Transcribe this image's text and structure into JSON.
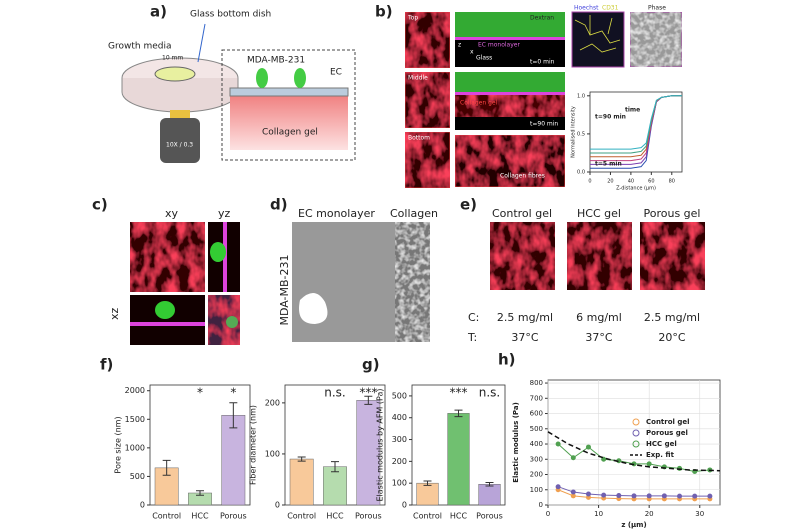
{
  "panels": {
    "a": {
      "label": "a)",
      "glass": "Glass bottom dish",
      "media": "Growth media",
      "scale": "10 mm",
      "cell": "MDA-MB-231",
      "ec": "EC",
      "gel": "Collagen gel",
      "objective": "10X / 0.3"
    },
    "b": {
      "label": "b)",
      "top": "Top",
      "middle": "Middle",
      "bottom": "Bottom",
      "dextran": "Dextran",
      "monolayer": "EC monolayer",
      "glass": "Glass",
      "t0": "t=0 min",
      "gel": "Collagen gel",
      "t90": "t=90 min",
      "fibres": "Collagen fibres",
      "hoechst": "Hoechst",
      "cd31": "CD31",
      "phase": "Phase",
      "z": "z",
      "x": "x"
    },
    "c": {
      "label": "c)",
      "xy": "xy",
      "yz": "yz",
      "xz": "xz"
    },
    "d": {
      "label": "d)",
      "monolayer": "EC monolayer",
      "collagen": "Collagen",
      "cell": "MDA-MB-231"
    },
    "e": {
      "label": "e)",
      "gels": [
        "Control gel",
        "HCC gel",
        "Porous gel"
      ],
      "c": "C:",
      "t": "T:",
      "conc": [
        "2.5 mg/ml",
        "6 mg/ml",
        "2.5 mg/ml"
      ],
      "temp": [
        "37°C",
        "37°C",
        "20°C"
      ]
    }
  },
  "chart_data": [
    {
      "type": "line",
      "ylabel": "Normalised Intensity",
      "xlabel": "Z-distance (µm)",
      "notes": [
        "t=90 min",
        "time",
        "t=5 min"
      ],
      "x": [
        0,
        20,
        40,
        50,
        55,
        60,
        65,
        70,
        80,
        90
      ],
      "xlim": [
        0,
        90
      ],
      "xticks": [
        0,
        20,
        40,
        60,
        80
      ],
      "ylim": [
        0,
        1.05
      ],
      "yticks": [
        {
          "value": 0,
          "label": "0.0"
        },
        {
          "value": 0.5,
          "label": "0.5"
        },
        {
          "value": 1,
          "label": "1.0"
        }
      ],
      "series": [
        {
          "color": "#2a4fb0",
          "values": [
            0.05,
            0.05,
            0.05,
            0.07,
            0.15,
            0.6,
            0.92,
            0.98,
            1,
            1
          ]
        },
        {
          "color": "#7a3fb0",
          "values": [
            0.1,
            0.1,
            0.1,
            0.12,
            0.2,
            0.62,
            0.92,
            0.98,
            1,
            1
          ]
        },
        {
          "color": "#c04080",
          "values": [
            0.15,
            0.15,
            0.15,
            0.17,
            0.25,
            0.64,
            0.93,
            0.98,
            1,
            1
          ]
        },
        {
          "color": "#c06030",
          "values": [
            0.2,
            0.2,
            0.2,
            0.22,
            0.3,
            0.66,
            0.93,
            0.98,
            1,
            1
          ]
        },
        {
          "color": "#40a080",
          "values": [
            0.25,
            0.25,
            0.25,
            0.27,
            0.34,
            0.68,
            0.94,
            0.98,
            1,
            1
          ]
        },
        {
          "color": "#30b0c0",
          "values": [
            0.3,
            0.3,
            0.3,
            0.32,
            0.38,
            0.7,
            0.94,
            0.98,
            1,
            1
          ]
        }
      ]
    },
    {
      "type": "bar",
      "label": "f)",
      "ylabel": "Pore size (nm)",
      "categories": [
        "Control",
        "HCC",
        "Porous"
      ],
      "values": [
        650,
        210,
        1570
      ],
      "errors": [
        130,
        40,
        220
      ],
      "colors": [
        "#f8c99a",
        "#b5dcae",
        "#c8b4df"
      ],
      "annotations": [
        null,
        "*",
        "*"
      ],
      "ylim": [
        0,
        2100
      ],
      "yticks": [
        0,
        500,
        1000,
        1500,
        2000
      ]
    },
    {
      "type": "bar",
      "ylabel": "Fiber diameter (nm)",
      "categories": [
        "Control",
        "HCC",
        "Porous"
      ],
      "values": [
        90,
        75,
        205
      ],
      "errors": [
        4,
        10,
        8
      ],
      "colors": [
        "#f8c99a",
        "#b5dcae",
        "#c8b4df"
      ],
      "annotations": [
        null,
        "n.s.",
        "***"
      ],
      "ylim": [
        0,
        235
      ],
      "yticks": [
        0,
        100,
        200
      ]
    },
    {
      "type": "bar",
      "label": "g)",
      "ylabel": "Elastic modulus by AFM (Pa)",
      "categories": [
        "Control",
        "HCC",
        "Porous"
      ],
      "values": [
        100,
        420,
        95
      ],
      "errors": [
        10,
        15,
        8
      ],
      "colors": [
        "#f8c99a",
        "#70c070",
        "#b8a4d8"
      ],
      "annotations": [
        null,
        "***",
        "n.s."
      ],
      "ylim": [
        0,
        550
      ],
      "yticks": [
        0,
        100,
        200,
        300,
        400,
        500
      ]
    },
    {
      "type": "scatter",
      "label": "h)",
      "ylabel": "Elastic modulus (Pa)",
      "xlabel": "z (µm)",
      "xlim": [
        0,
        34
      ],
      "xticks": [
        0,
        10,
        20,
        30
      ],
      "ylim": [
        0,
        820
      ],
      "yticks": [
        0,
        100,
        200,
        300,
        400,
        500,
        600,
        700,
        800
      ],
      "grid": true,
      "series": [
        {
          "name": "Control gel",
          "color": "#f0a050",
          "x": [
            2,
            5,
            8,
            11,
            14,
            17,
            20,
            23,
            26,
            29,
            32
          ],
          "values": [
            100,
            60,
            50,
            45,
            42,
            40,
            40,
            40,
            40,
            40,
            40
          ]
        },
        {
          "name": "Porous gel",
          "color": "#7060b0",
          "x": [
            2,
            5,
            8,
            11,
            14,
            17,
            20,
            23,
            26,
            29,
            32
          ],
          "values": [
            120,
            85,
            72,
            65,
            62,
            60,
            60,
            60,
            58,
            58,
            58
          ]
        },
        {
          "name": "HCC gel",
          "color": "#50a050",
          "x": [
            2,
            5,
            8,
            11,
            14,
            17,
            20,
            23,
            26,
            29,
            32
          ],
          "values": [
            400,
            310,
            380,
            300,
            290,
            270,
            270,
            250,
            240,
            220,
            230
          ]
        },
        {
          "name": "Exp. fit",
          "color": "#111111",
          "style": "dashed",
          "x": [
            0,
            4,
            8,
            12,
            16,
            20,
            24,
            28,
            34
          ],
          "values": [
            480,
            400,
            340,
            300,
            270,
            250,
            240,
            230,
            225
          ]
        }
      ]
    }
  ]
}
